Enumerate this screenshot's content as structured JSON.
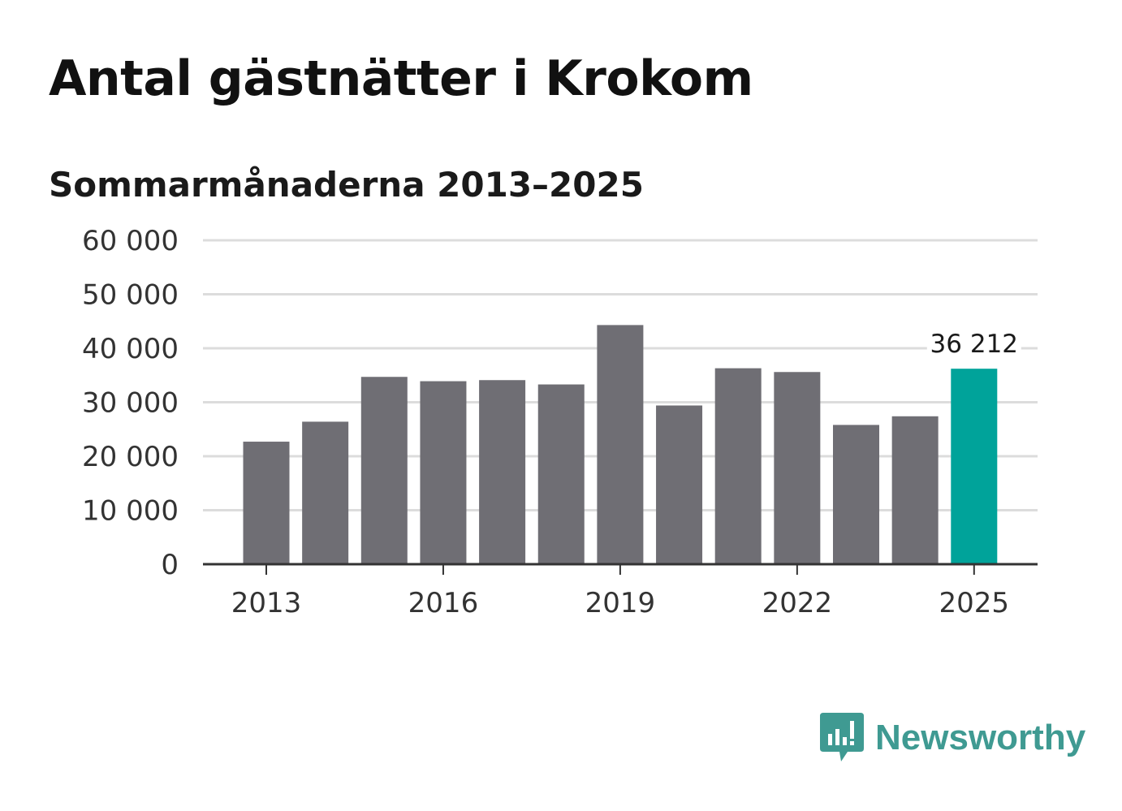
{
  "title": "Antal gästnätter i Krokom",
  "subtitle": "Sommarmånaderna 2013–2025",
  "brand": "Newsworthy",
  "colors": {
    "bar": "#6f6e74",
    "highlight": "#00a39a",
    "grid": "#dcdcdc",
    "axis": "#333333",
    "brand": "#3f9a92"
  },
  "chart_data": {
    "type": "bar",
    "categories": [
      "2013",
      "2014",
      "2015",
      "2016",
      "2017",
      "2018",
      "2019",
      "2020",
      "2021",
      "2022",
      "2023",
      "2024",
      "2025"
    ],
    "values": [
      22700,
      26400,
      34700,
      33900,
      34100,
      33300,
      44300,
      29400,
      36300,
      35600,
      25800,
      27400,
      36212
    ],
    "highlight_index": 12,
    "highlight_label": "36 212",
    "ylim": [
      0,
      60000
    ],
    "yticks": [
      0,
      10000,
      20000,
      30000,
      40000,
      50000,
      60000
    ],
    "ytick_labels": [
      "0",
      "10 000",
      "20 000",
      "30 000",
      "40 000",
      "50 000",
      "60 000"
    ],
    "xticks": [
      "2013",
      "2016",
      "2019",
      "2022",
      "2025"
    ],
    "grid": true,
    "xlabel": "",
    "ylabel": ""
  }
}
